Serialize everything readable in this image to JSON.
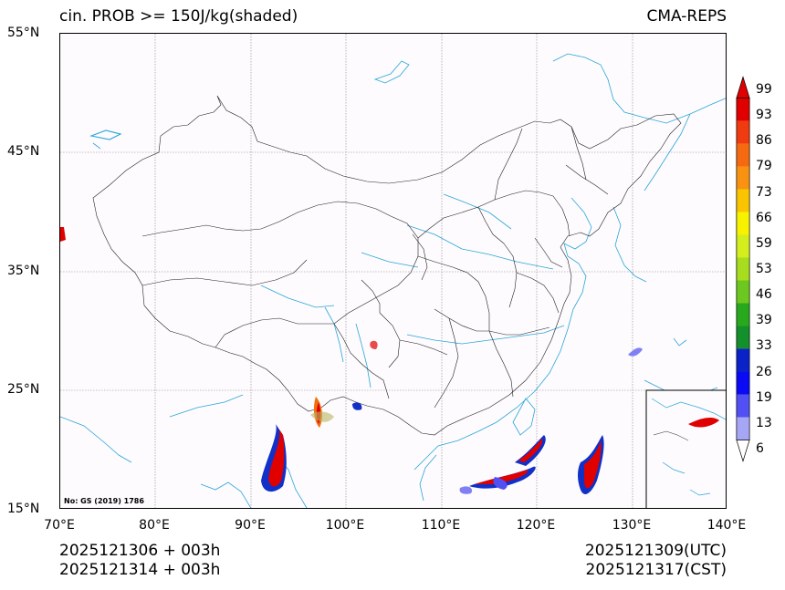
{
  "title_left": "cin. PROB >= 150J/kg(shaded)",
  "title_right": "CMA-REPS",
  "x_ticks": [
    "70°E",
    "80°E",
    "90°E",
    "100°E",
    "110°E",
    "120°E",
    "130°E",
    "140°E"
  ],
  "y_ticks": [
    "55°N",
    "45°N",
    "35°N",
    "25°N",
    "15°N"
  ],
  "map_note": "No: GS (2019) 1786",
  "footer_left": [
    "2025121306  +  003h",
    "2025121314  +  003h"
  ],
  "footer_right": [
    "2025121309(UTC)",
    "2025121317(CST)"
  ],
  "colorbar": {
    "labels": [
      "99",
      "93",
      "86",
      "79",
      "73",
      "66",
      "59",
      "53",
      "46",
      "39",
      "33",
      "26",
      "19",
      "13",
      "6"
    ],
    "colors": [
      "#e00000",
      "#f03a10",
      "#f56a10",
      "#f99210",
      "#fbc400",
      "#f7f200",
      "#d3ee1c",
      "#a8dc1e",
      "#6cc81e",
      "#28a81c",
      "#13902c",
      "#0a22c8",
      "#0a0af4",
      "#5050f4",
      "#a6a6f6"
    ]
  },
  "chart_data": {
    "type": "map",
    "projection": "lat-lon",
    "lon_range": [
      70,
      140
    ],
    "lat_range": [
      15,
      55
    ],
    "field": "cin. PROB >= 150J/kg",
    "units": "%"
  }
}
